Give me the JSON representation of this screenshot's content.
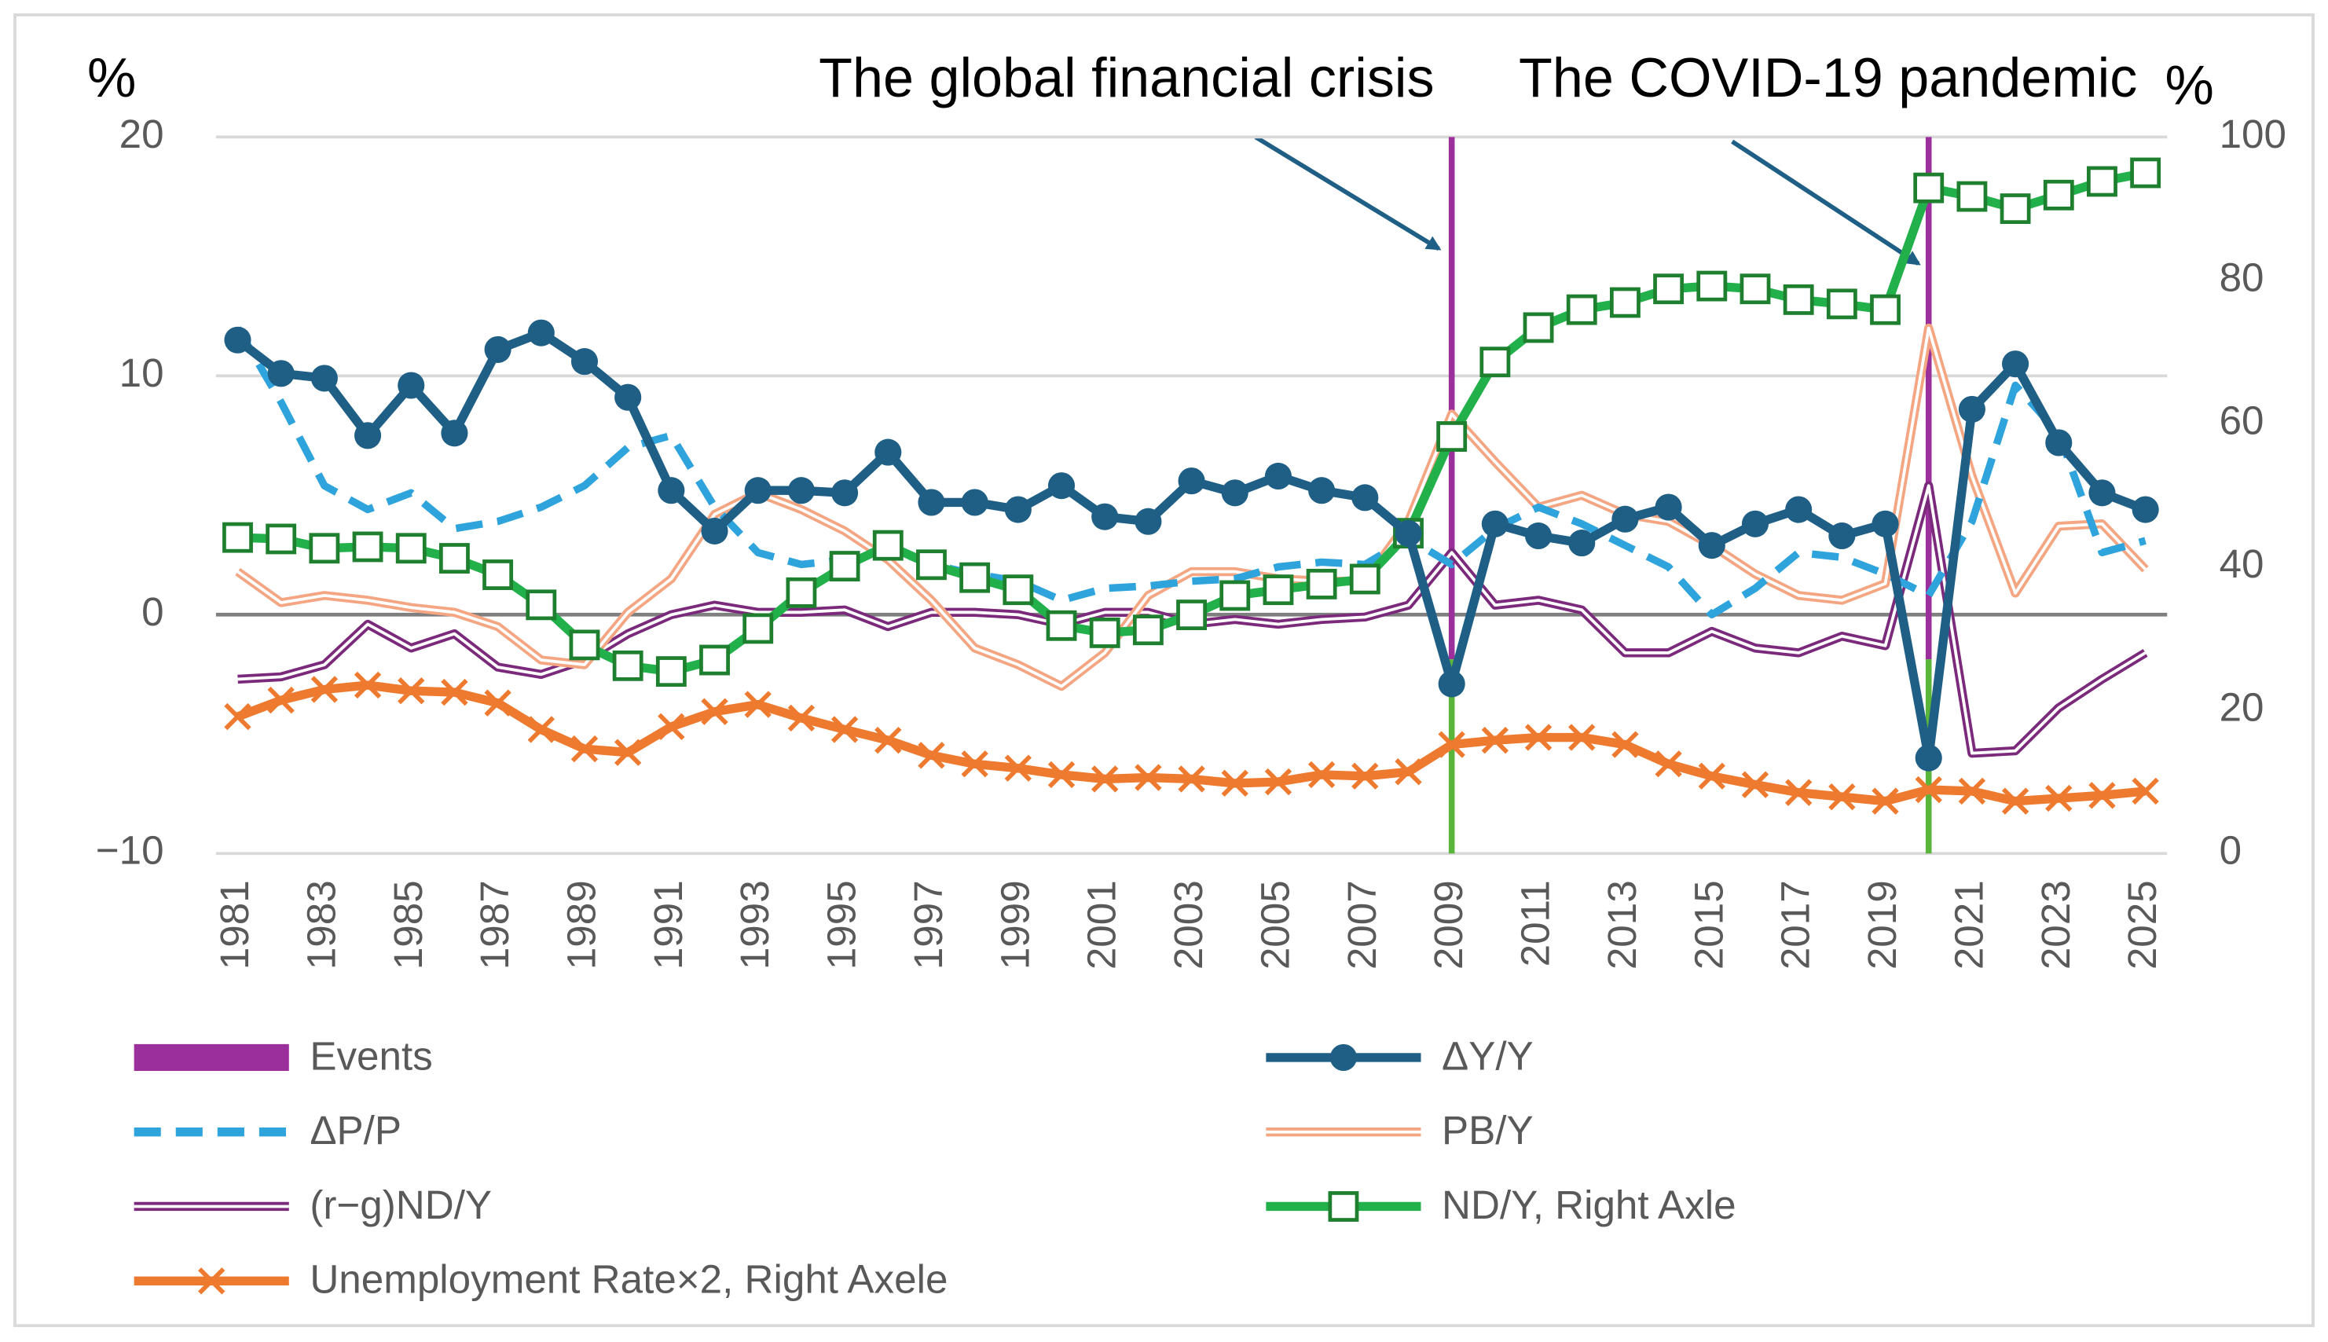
{
  "chart_data": {
    "type": "line",
    "left_unit": "%",
    "right_unit": "%",
    "annotations": [
      {
        "text": "The global financial crisis",
        "x": 2009
      },
      {
        "text": "The COVID-19 pandemic",
        "x": 2020
      }
    ],
    "events": {
      "name": "Events",
      "color": "#9b2f9b",
      "lower_color": "#5bb53a",
      "x": [
        2009,
        2020
      ]
    },
    "x": [
      1981,
      1982,
      1983,
      1984,
      1985,
      1986,
      1987,
      1988,
      1989,
      1990,
      1991,
      1992,
      1993,
      1994,
      1995,
      1996,
      1997,
      1998,
      1999,
      2000,
      2001,
      2002,
      2003,
      2004,
      2005,
      2006,
      2007,
      2008,
      2009,
      2010,
      2011,
      2012,
      2013,
      2014,
      2015,
      2016,
      2017,
      2018,
      2019,
      2020,
      2021,
      2022,
      2023,
      2024,
      2025
    ],
    "xlim": [
      1980.5,
      2025.5
    ],
    "xticks": [
      1981,
      1983,
      1985,
      1987,
      1989,
      1991,
      1993,
      1995,
      1997,
      1999,
      2001,
      2003,
      2005,
      2007,
      2009,
      2011,
      2013,
      2015,
      2017,
      2019,
      2021,
      2023,
      2025
    ],
    "ylim": [
      -10,
      20
    ],
    "yticks": [
      {
        "value": -10,
        "label": "−10"
      },
      0,
      10,
      20
    ],
    "y2lim": [
      0,
      100
    ],
    "y2ticks": [
      0,
      20,
      40,
      60,
      80,
      100
    ],
    "grid": true,
    "series": [
      {
        "name": "ΔY/Y",
        "color": "#1f5f86",
        "style": "solid",
        "marker": "circle",
        "values": [
          11.5,
          10.1,
          9.9,
          7.5,
          9.6,
          7.6,
          11.1,
          11.8,
          10.6,
          9.1,
          5.2,
          3.5,
          5.2,
          5.2,
          5.1,
          6.8,
          4.7,
          4.7,
          4.4,
          5.4,
          4.1,
          3.9,
          5.6,
          5.1,
          5.8,
          5.2,
          4.9,
          3.4,
          -2.9,
          3.8,
          3.3,
          3.0,
          4.0,
          4.5,
          2.9,
          3.8,
          4.4,
          3.3,
          3.8,
          -6.0,
          8.6,
          10.5,
          7.2,
          5.1,
          4.4
        ]
      },
      {
        "name": "ΔP/P",
        "color": "#2ea3dc",
        "style": "dashed",
        "marker": "none",
        "values": [
          12.0,
          8.9,
          5.4,
          4.4,
          5.1,
          3.6,
          3.9,
          4.5,
          5.4,
          7.0,
          7.5,
          4.5,
          2.6,
          2.1,
          2.3,
          2.8,
          2.1,
          1.7,
          1.4,
          0.6,
          1.1,
          1.2,
          1.4,
          1.5,
          2.0,
          2.2,
          2.1,
          3.2,
          2.1,
          3.6,
          4.5,
          3.8,
          2.9,
          2.0,
          0.0,
          1.1,
          2.6,
          2.4,
          1.7,
          0.8,
          3.9,
          9.6,
          7.6,
          2.6,
          3.1
        ]
      },
      {
        "name": "PB/Y",
        "color": "#f4a582",
        "style": "double",
        "marker": "none",
        "values": [
          1.8,
          0.5,
          0.8,
          0.6,
          0.3,
          0.1,
          -0.5,
          -1.9,
          -2.1,
          0.1,
          1.5,
          4.2,
          5.1,
          4.4,
          3.5,
          2.3,
          0.6,
          -1.4,
          -2.1,
          -3.0,
          -1.6,
          0.8,
          1.8,
          1.8,
          1.5,
          1.4,
          1.4,
          3.9,
          8.4,
          6.4,
          4.5,
          5.0,
          4.2,
          3.9,
          2.9,
          1.7,
          0.8,
          0.6,
          1.3,
          12.0,
          5.8,
          0.9,
          3.7,
          3.8,
          1.9
        ]
      },
      {
        "name": "(r−g)ND/Y",
        "color": "#7b2a7b",
        "style": "double",
        "marker": "none",
        "values": [
          -2.7,
          -2.6,
          -2.1,
          -0.4,
          -1.4,
          -0.8,
          -2.2,
          -2.5,
          -1.9,
          -0.8,
          0.0,
          0.4,
          0.1,
          0.1,
          0.2,
          -0.5,
          0.1,
          0.1,
          0.0,
          -0.4,
          0.1,
          0.1,
          -0.4,
          -0.2,
          -0.4,
          -0.2,
          -0.1,
          0.4,
          2.6,
          0.4,
          0.6,
          0.2,
          -1.6,
          -1.6,
          -0.7,
          -1.4,
          -1.6,
          -0.9,
          -1.3,
          5.4,
          -5.8,
          -5.7,
          -3.9,
          -2.7,
          -1.6
        ]
      },
      {
        "name": "ND/Y, Right Axle",
        "color": "#22b04b",
        "style": "solid",
        "marker": "square",
        "axis": "y2",
        "values": [
          44.1,
          43.9,
          42.6,
          42.8,
          42.6,
          41.2,
          38.9,
          34.7,
          29.1,
          26.2,
          25.4,
          27.0,
          31.4,
          36.4,
          40.1,
          43.0,
          40.3,
          38.5,
          36.8,
          31.8,
          30.8,
          31.2,
          33.3,
          36.0,
          36.8,
          37.6,
          38.3,
          44.7,
          58.2,
          68.6,
          73.4,
          75.9,
          76.9,
          78.8,
          79.2,
          78.8,
          77.3,
          76.7,
          75.9,
          92.9,
          91.7,
          90.0,
          91.9,
          93.8,
          95.0
        ]
      },
      {
        "name": "Unemployment Rate×2, Right Axele",
        "color": "#ee7a2f",
        "style": "solid",
        "marker": "x",
        "axis": "y2",
        "values": [
          19.1,
          21.4,
          22.9,
          23.5,
          22.7,
          22.5,
          21.0,
          17.3,
          14.6,
          14.1,
          17.7,
          19.8,
          20.8,
          18.9,
          17.3,
          15.8,
          13.7,
          12.5,
          11.9,
          11.0,
          10.4,
          10.6,
          10.4,
          9.8,
          10.0,
          11.0,
          10.8,
          11.4,
          15.2,
          15.8,
          16.2,
          16.2,
          15.2,
          12.5,
          10.8,
          9.6,
          8.5,
          7.9,
          7.3,
          8.9,
          8.7,
          7.3,
          7.7,
          8.1,
          8.7
        ]
      }
    ]
  }
}
